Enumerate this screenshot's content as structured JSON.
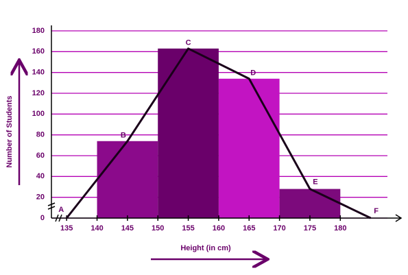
{
  "chart_data": {
    "type": "histogram",
    "bins": [
      140,
      150,
      160,
      170,
      180
    ],
    "values": [
      74,
      163,
      134,
      28
    ],
    "colors": [
      "#8b0a8b",
      "#6a006a",
      "#c214c2",
      "#7c0a7c"
    ],
    "polygon": {
      "x": [
        135,
        145,
        155,
        165,
        175,
        185
      ],
      "values": [
        0,
        74,
        163,
        134,
        28,
        0
      ],
      "labels": [
        "A",
        "B",
        "C",
        "D",
        "E",
        "F"
      ],
      "color": "#1a001a"
    },
    "x_label": "Height (in cm)",
    "y_label": "Number of Students",
    "xlim": [
      132.5,
      190
    ],
    "ylim": [
      0,
      180
    ],
    "xticks": [
      135,
      140,
      145,
      150,
      155,
      160,
      165,
      170,
      175,
      180
    ],
    "yticks": [
      0,
      20,
      40,
      60,
      80,
      100,
      120,
      140,
      160,
      180
    ],
    "grid": true,
    "grid_color": "#b400b4"
  }
}
